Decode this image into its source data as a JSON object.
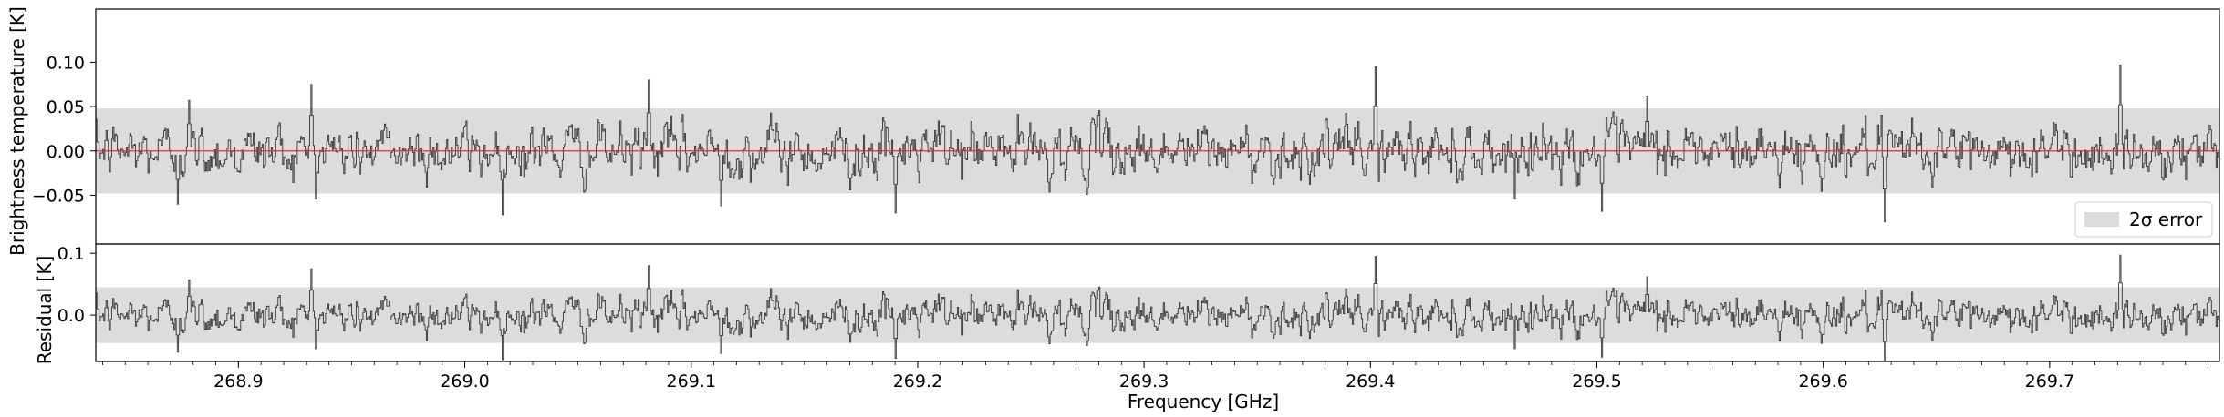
{
  "chart_data": [
    {
      "type": "line",
      "panel": "top",
      "xlabel": "",
      "ylabel": "Brightness temperature [K]",
      "xlim": [
        268.837,
        269.775
      ],
      "ylim": [
        -0.105,
        0.16
      ],
      "yticks": [
        -0.05,
        0.0,
        0.05,
        0.1
      ],
      "ytick_labels": [
        "−0.05",
        "0.00",
        "0.05",
        "0.10"
      ],
      "grid": false,
      "error_band": {
        "name": "2σ error",
        "lower": -0.048,
        "upper": 0.048,
        "color": "#dcdcdc"
      },
      "model_line": {
        "value": 0.0,
        "color": "#e03030"
      },
      "legend": {
        "placement": "lower-right",
        "entries": [
          "2σ error"
        ]
      },
      "series": [
        {
          "color": "#333333",
          "noise_sigma": 0.022,
          "x_step_ghz": 0.0005,
          "peaks": [
            {
              "x": 268.932,
              "y": 0.075
            },
            {
              "x": 269.081,
              "y": 0.08
            },
            {
              "x": 269.402,
              "y": 0.095
            },
            {
              "x": 269.731,
              "y": 0.097
            },
            {
              "x": 268.878,
              "y": 0.057
            },
            {
              "x": 269.522,
              "y": 0.062
            }
          ],
          "dips": [
            {
              "x": 268.873,
              "y": -0.06
            },
            {
              "x": 269.113,
              "y": -0.062
            },
            {
              "x": 269.19,
              "y": -0.07
            },
            {
              "x": 269.502,
              "y": -0.068
            },
            {
              "x": 269.627,
              "y": -0.08
            }
          ]
        }
      ]
    },
    {
      "type": "line",
      "panel": "bottom",
      "xlabel": "Frequency [GHz]",
      "ylabel": "Residual [K]",
      "xlim": [
        268.837,
        269.775
      ],
      "ylim": [
        -0.075,
        0.115
      ],
      "yticks": [
        0.0,
        0.1
      ],
      "ytick_labels": [
        "0.0",
        "0.1"
      ],
      "xticks": [
        268.9,
        269.0,
        269.1,
        269.2,
        269.3,
        269.4,
        269.5,
        269.6,
        269.7
      ],
      "xtick_labels": [
        "268.9",
        "269.0",
        "269.1",
        "269.2",
        "269.3",
        "269.4",
        "269.5",
        "269.6",
        "269.7"
      ],
      "grid": false,
      "error_band": {
        "lower": -0.045,
        "upper": 0.045,
        "color": "#dcdcdc"
      },
      "series": [
        {
          "color": "#333333",
          "same_as_panel": "top"
        }
      ]
    }
  ]
}
